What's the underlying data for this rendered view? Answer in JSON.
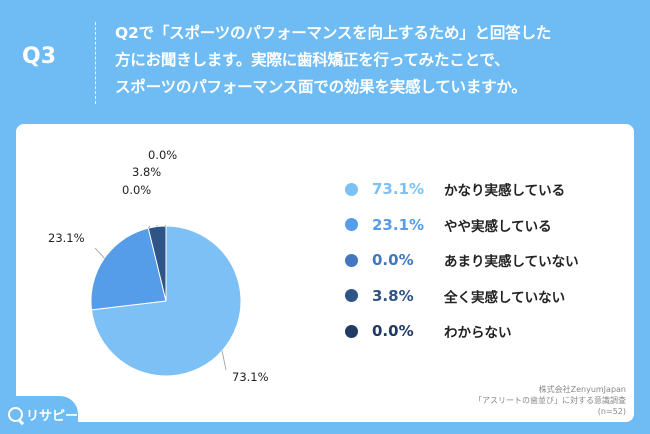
{
  "header": {
    "question_number": "Q3",
    "question_lines": [
      "Q2で「スポーツのパフォーマンスを向上するため」と回答した",
      "方にお聞きします。実際に歯科矯正を行ってみたことで、",
      "スポーツのパフォーマンス面での効果を実感していますか。"
    ]
  },
  "chart_data": {
    "type": "pie",
    "categories": [
      "かなり実感している",
      "やや実感している",
      "あまり実感していない",
      "全く実感していない",
      "わからない"
    ],
    "values": [
      73.1,
      23.1,
      0.0,
      3.8,
      0.0
    ],
    "value_labels": [
      "73.1%",
      "23.1%",
      "0.0%",
      "3.8%",
      "0.0%"
    ],
    "colors": [
      "#7cc0f5",
      "#559ce9",
      "#4278bf",
      "#2f5486",
      "#1f3a64"
    ],
    "legend_pct_colors": [
      "#7cc0f5",
      "#559ce9",
      "#4278bf",
      "#2f5486",
      "#1f3a64"
    ],
    "start_angle_deg": 0,
    "direction": "clockwise",
    "legend_placement": "right"
  },
  "credits": {
    "line1": "株式会社ZenyumJapan",
    "line2": "「アスリートの歯並び」に対する意識調査",
    "line3": "(n=52)"
  },
  "logo": {
    "text": "リサピー"
  }
}
